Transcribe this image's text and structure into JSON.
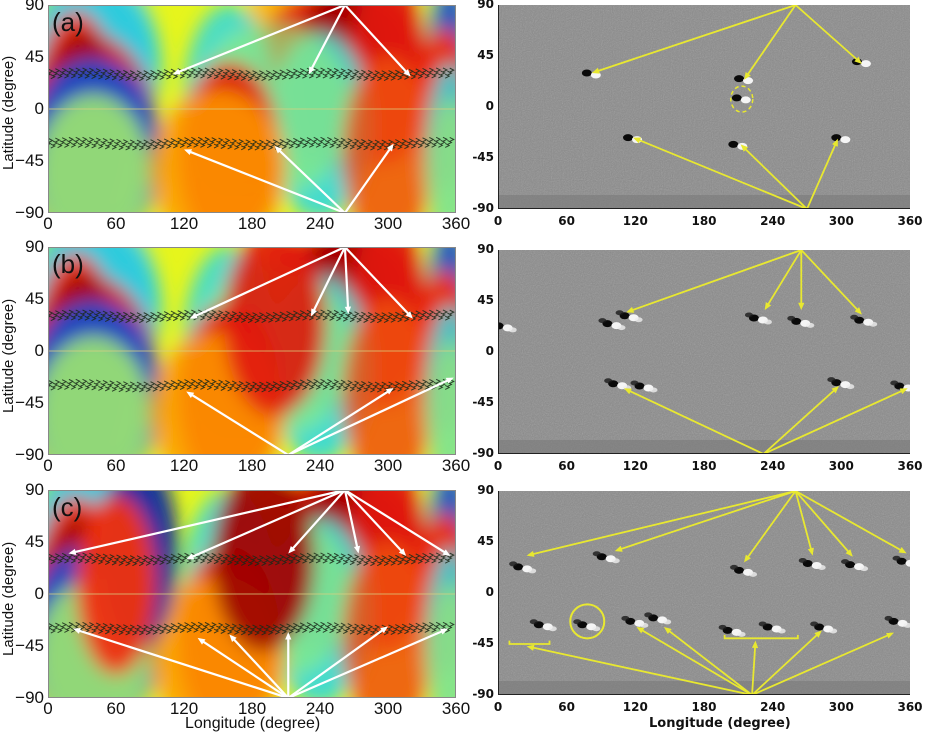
{
  "figure": {
    "left_column": {
      "description": "Simulated contour maps with vector arrows and white arrows",
      "y_axis_label": "Latitude (degree)",
      "x_axis_label": "Longitude (degree)",
      "y_ticks": [
        "90",
        "45",
        "0",
        "−45",
        "−90"
      ],
      "x_ticks": [
        "0",
        "60",
        "120",
        "180",
        "240",
        "300",
        "360"
      ]
    },
    "right_column": {
      "description": "Grayscale magnetograms with yellow arrows",
      "x_axis_label": "Longitude (degree)",
      "y_ticks": [
        "90",
        "45",
        "0",
        "-45",
        "-90"
      ],
      "x_ticks": [
        "0",
        "60",
        "120",
        "180",
        "240",
        "300",
        "360"
      ]
    },
    "panels": [
      {
        "label": "(a)"
      },
      {
        "label": "(b)"
      },
      {
        "label": "(c)"
      }
    ],
    "colors": {
      "contour_background": "#e6f51c",
      "contour_red": "#e8180c",
      "contour_darkred": "#a00000",
      "contour_orange": "#ff9a00",
      "contour_cyan": "#30dde0",
      "contour_blue": "#1040c0",
      "magnetogram_gray": "#8a8a8a",
      "arrow_white": "#ffffff",
      "arrow_yellow": "#e8e830"
    }
  },
  "chart_data": [
    {
      "type": "heatmap",
      "panel": "(a) left",
      "title": "",
      "xlabel": "",
      "ylabel": "Latitude (degree)",
      "xlim": [
        0,
        360
      ],
      "ylim": [
        -90,
        90
      ],
      "x_ticks": [
        0,
        60,
        120,
        180,
        240,
        300,
        360
      ],
      "y_ticks": [
        -90,
        -45,
        0,
        45,
        90
      ],
      "annotations": [
        "(a)",
        "white arrows from (262,90) to approx (110,30),(230,30),(320,28)",
        "white arrows from (262,-90) to approx (120,-35),(200,-32),(305,-30)"
      ]
    },
    {
      "type": "heatmap",
      "panel": "(a) right",
      "xlim": [
        0,
        360
      ],
      "ylim": [
        -90,
        90
      ],
      "x_ticks": [
        0,
        60,
        120,
        180,
        240,
        300,
        360
      ],
      "y_ticks": [
        -90,
        -45,
        0,
        45,
        90
      ],
      "annotations": [
        "yellow arrows from (260,90) to approx (82,30),(215,22),(318,38)",
        "yellow arrows from (270,-90) to approx (118,-27),(212,-33),(297,-28)",
        "dashed yellow circle near (213,7)"
      ]
    },
    {
      "type": "heatmap",
      "panel": "(b) left",
      "ylabel": "Latitude (degree)",
      "xlim": [
        0,
        360
      ],
      "ylim": [
        -90,
        90
      ],
      "x_ticks": [
        0,
        60,
        120,
        180,
        240,
        300,
        360
      ],
      "y_ticks": [
        -90,
        -45,
        0,
        45,
        90
      ],
      "annotations": [
        "(b)",
        "white arrows from (262,90) to approx (125,28),(232,30),(265,32),(322,28)",
        "white arrows from (212,-90) to approx (122,-35),(305,-32),(360,-23)"
      ]
    },
    {
      "type": "heatmap",
      "panel": "(b) right",
      "xlim": [
        0,
        360
      ],
      "ylim": [
        -90,
        90
      ],
      "x_ticks": [
        0,
        60,
        120,
        180,
        240,
        300,
        360
      ],
      "y_ticks": [
        -90,
        -45,
        0,
        45,
        90
      ],
      "annotations": [
        "yellow arrows from (265,90) to approx (112,35),(233,37),(265,37),(318,33)",
        "yellow arrows from (232,-90) to approx (110,-32),(298,-30),(360,-32)"
      ]
    },
    {
      "type": "heatmap",
      "panel": "(c) left",
      "xlabel": "Longitude (degree)",
      "ylabel": "Latitude (degree)",
      "xlim": [
        0,
        360
      ],
      "ylim": [
        -90,
        90
      ],
      "x_ticks": [
        0,
        60,
        120,
        180,
        240,
        300,
        360
      ],
      "y_ticks": [
        -90,
        -45,
        0,
        45,
        90
      ],
      "annotations": [
        "(c)",
        "white arrows from (262,90) to approx (18,35),(122,30),(212,35),(274,35),(316,33),(355,33)",
        "white arrows from (212,-90) to approx (22,-30),(132,-38),(160,-35),(212,-33),(300,-28),(353,-30)"
      ]
    },
    {
      "type": "heatmap",
      "panel": "(c) right",
      "xlabel": "Longitude (degree)",
      "xlim": [
        0,
        360
      ],
      "ylim": [
        -90,
        90
      ],
      "x_ticks": [
        0,
        60,
        120,
        180,
        240,
        300,
        360
      ],
      "y_ticks": [
        -90,
        -45,
        0,
        45,
        90
      ],
      "annotations": [
        "yellow arrows from (260,90) to approx (25,33),(102,37),(215,27),(275,33),(310,32),(357,35)",
        "yellow arrows from (222,-90) to approx (25,-47),(121,-30),(145,-30),(225,-42),(283,-33),(346,-35)",
        "yellow circle near (78,-25)",
        "brackets near (10..45,-45) and (198..262,-40)"
      ]
    }
  ]
}
